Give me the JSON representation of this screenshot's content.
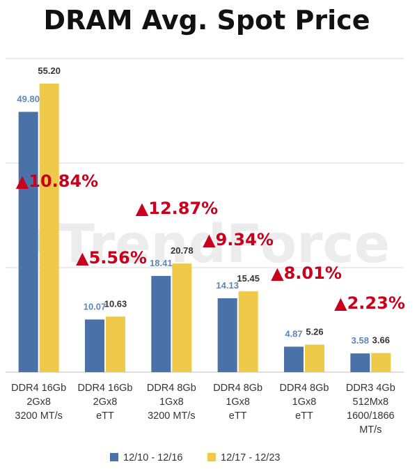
{
  "chart_data": {
    "type": "bar",
    "title": "DRAM Avg. Spot Price",
    "xlabel": "",
    "ylabel": "",
    "ylim": [
      0,
      60
    ],
    "grid": true,
    "legend_position": "bottom-center",
    "categories": [
      [
        "DDR4 16Gb",
        "2Gx8",
        "3200 MT/s"
      ],
      [
        "DDR4 16Gb",
        "2Gx8",
        "eTT"
      ],
      [
        "DDR4 8Gb",
        "1Gx8",
        "3200 MT/s"
      ],
      [
        "DDR4 8Gb",
        "1Gx8",
        "eTT"
      ],
      [
        "DDR4 8Gb",
        "1Gx8",
        "eTT"
      ],
      [
        "DDR3 4Gb",
        "512Mx8",
        "1600/1866",
        "MT/s"
      ]
    ],
    "series": [
      {
        "name": "12/10 - 12/16",
        "values": [
          49.8,
          10.07,
          18.41,
          14.13,
          4.87,
          3.58
        ],
        "labels": [
          "49.80",
          "10.07",
          "18.41",
          "14.13",
          "4.87",
          "3.58"
        ],
        "color": "#4a72a8",
        "label_color": "#5f86b8"
      },
      {
        "name": "12/17 - 12/23",
        "values": [
          55.2,
          10.63,
          20.78,
          15.45,
          5.26,
          3.66
        ],
        "labels": [
          "55.20",
          "10.63",
          "20.78",
          "15.45",
          "5.26",
          "3.66"
        ],
        "color": "#eec94a",
        "label_color": "#333333"
      }
    ],
    "annotations": [
      "▲10.84%",
      "▲5.56%",
      "▲12.87%",
      "▲9.34%",
      "▲8.01%",
      "▲2.23%"
    ],
    "annotation_color": "#c8001e",
    "watermark": "TrendForce"
  }
}
